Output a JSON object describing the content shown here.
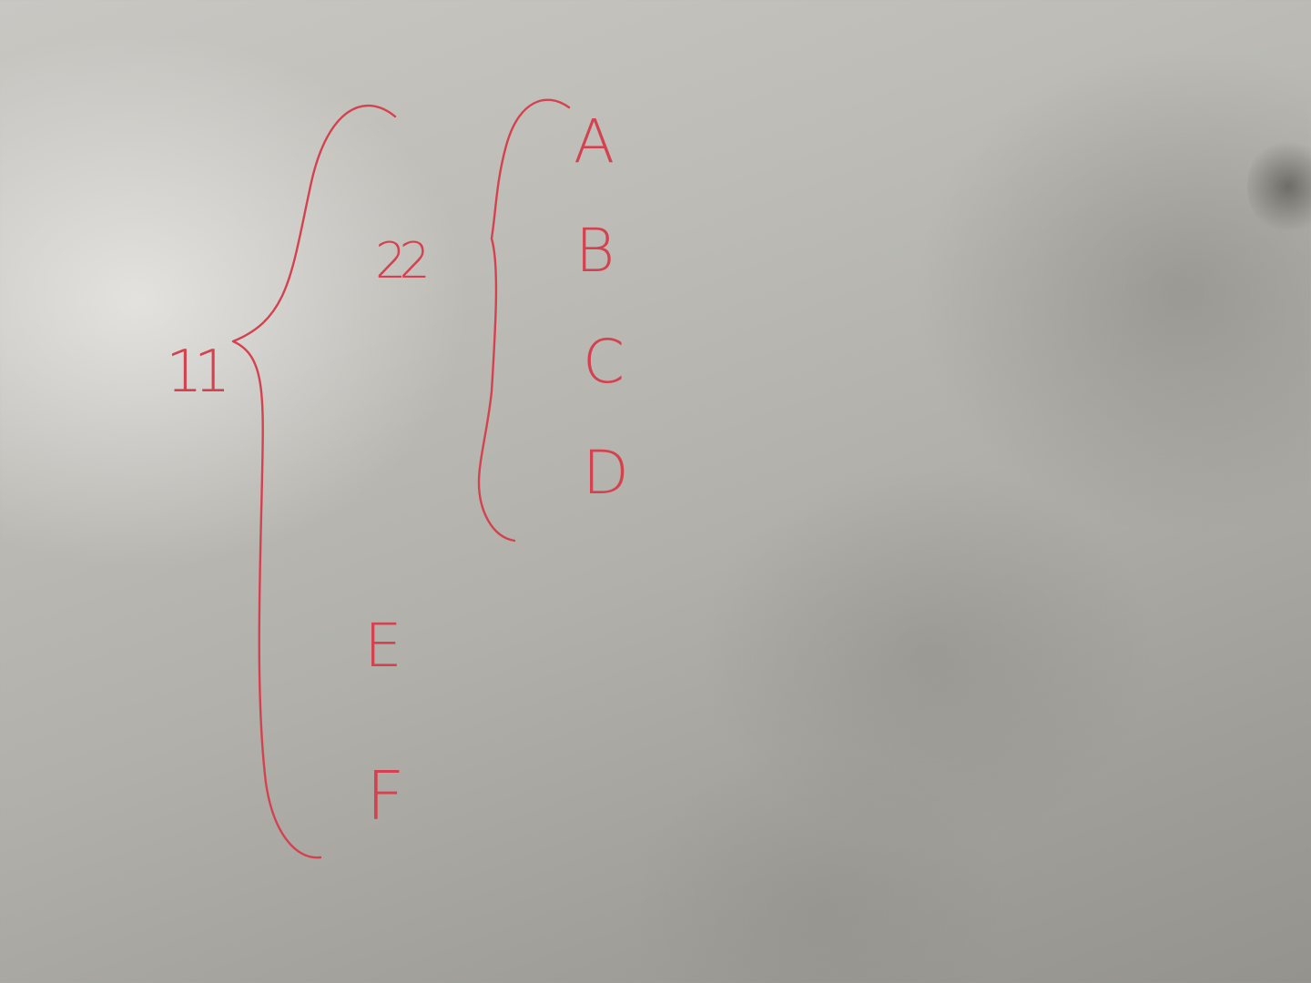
{
  "ink_color": "#d4424f",
  "root": {
    "label": "11",
    "children": [
      {
        "label": "22",
        "children": [
          {
            "label": "A"
          },
          {
            "label": "B"
          },
          {
            "label": "C"
          },
          {
            "label": "D"
          }
        ]
      },
      {
        "label": "E"
      },
      {
        "label": "F"
      }
    ]
  }
}
